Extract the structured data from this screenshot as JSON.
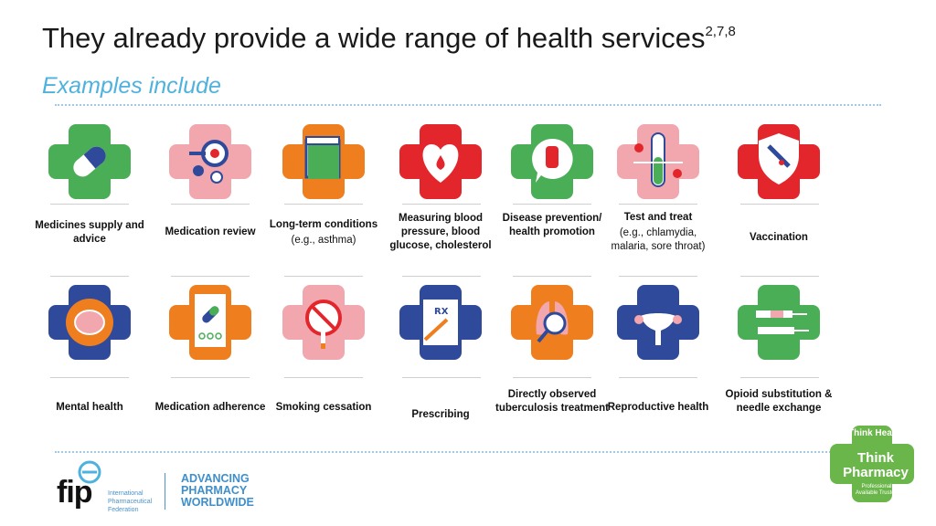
{
  "header": {
    "title": "They already provide a wide range of health services",
    "title_sup": "2,7,8",
    "subtitle": "Examples include"
  },
  "services_row1": [
    {
      "bold": "Medicines supply and advice",
      "sub": "",
      "icon": "pill-icon",
      "color": "#4aae57"
    },
    {
      "bold": "Medication review",
      "sub": "",
      "icon": "magnifier-pills-icon",
      "color": "#f2a7ae"
    },
    {
      "bold": "Long-term conditions",
      "sub": "(e.g., asthma)",
      "icon": "calendar-icon",
      "color": "#ef7e1e"
    },
    {
      "bold": "Measuring blood pressure, blood glucose, cholesterol",
      "sub": "",
      "icon": "heart-drop-icon",
      "color": "#e3262c"
    },
    {
      "bold": "Disease prevention/ health promotion",
      "sub": "",
      "icon": "stop-hand-icon",
      "color": "#4aae57"
    },
    {
      "bold": "Test and treat",
      "sub": "(e.g., chlamydia, malaria, sore throat)",
      "icon": "test-tube-icon",
      "color": "#f2a7ae"
    },
    {
      "bold": "Vaccination",
      "sub": "",
      "icon": "vaccine-shield-icon",
      "color": "#e3262c"
    }
  ],
  "services_row2": [
    {
      "bold": "Mental health",
      "sub": "",
      "icon": "brain-icon",
      "color": "#2f4a9b"
    },
    {
      "bold": "Medication adherence",
      "sub": "",
      "icon": "checklist-icon",
      "color": "#ef7e1e"
    },
    {
      "bold": "Smoking cessation",
      "sub": "",
      "icon": "no-smoking-icon",
      "color": "#f2a7ae"
    },
    {
      "bold": "Prescribing",
      "sub": "",
      "icon": "prescription-icon",
      "color": "#2f4a9b"
    },
    {
      "bold": "Directly observed tuberculosis treatment",
      "sub": "",
      "icon": "lungs-magnifier-icon",
      "color": "#ef7e1e"
    },
    {
      "bold": "Reproductive health",
      "sub": "",
      "icon": "uterus-icon",
      "color": "#2f4a9b"
    },
    {
      "bold": "Opioid substitution & needle exchange",
      "sub": "",
      "icon": "syringe-icon",
      "color": "#4aae57"
    }
  ],
  "footer": {
    "fip": "fip",
    "fip_org": "International Pharmaceutical Federation",
    "advancing": "ADVANCING",
    "pharmacy": "PHARMACY",
    "worldwide": "WORLDWIDE",
    "badge_think_health": "Think Health",
    "badge_think": "Think",
    "badge_pharmacy": "Pharmacy",
    "badge_sub": "Professional Available Trusted"
  }
}
